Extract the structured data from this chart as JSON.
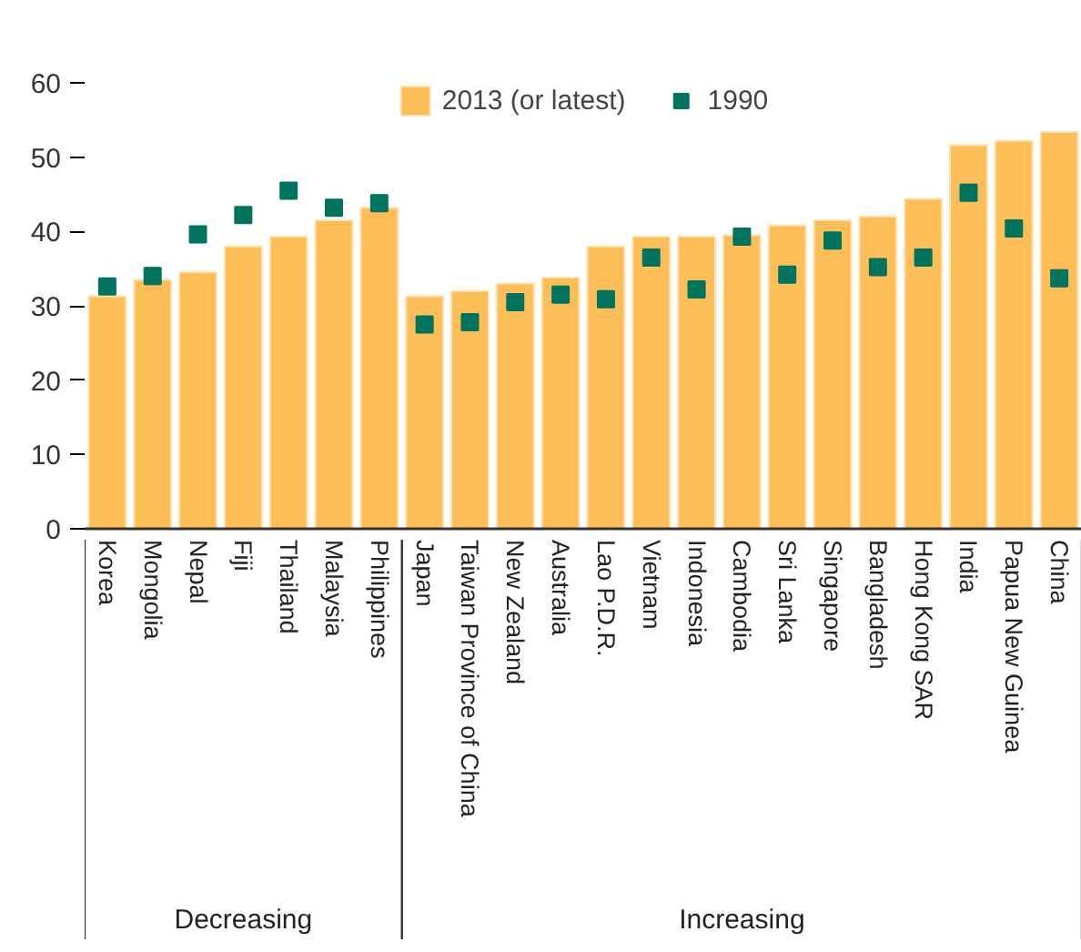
{
  "chart_data": {
    "type": "bar",
    "categories": [
      "Korea",
      "Mongolia",
      "Nepal",
      "Fiji",
      "Thailand",
      "Malaysia",
      "Philippines",
      "Japan",
      "Taiwan Province of China",
      "New Zealand",
      "Australia",
      "Lao P.D.R.",
      "Vietnam",
      "Indonesia",
      "Cambodia",
      "Sri Lanka",
      "Singapore",
      "Bangladesh",
      "Hong Kong SAR",
      "India",
      "Papua New Guinea",
      "China"
    ],
    "series": [
      {
        "name": "2013 (or latest)",
        "color": "#fdbe57",
        "values": [
          31.3,
          33.5,
          34.5,
          38,
          39.3,
          41.5,
          43.2,
          31.3,
          32,
          33,
          33.8,
          38,
          39.3,
          39.3,
          39.5,
          40.8,
          41.5,
          42,
          44.4,
          51.6,
          52.2,
          53.4
        ]
      },
      {
        "name": "1990",
        "type": "scatter",
        "marker": "square",
        "color": "#00735e",
        "values": [
          32.6,
          34,
          39.6,
          42.2,
          45.5,
          43.2,
          43.8,
          27.5,
          27.8,
          30.5,
          31.5,
          30.9,
          36.5,
          32.2,
          39.3,
          34.2,
          38.8,
          35.2,
          36.5,
          45.2,
          40.4,
          33.7
        ]
      }
    ],
    "ylim": [
      0,
      60
    ],
    "yticks": [
      0,
      10,
      20,
      30,
      40,
      50,
      60
    ],
    "grid": false,
    "legend": "top",
    "annotations": [
      "Decreasing",
      "Increasing"
    ]
  }
}
